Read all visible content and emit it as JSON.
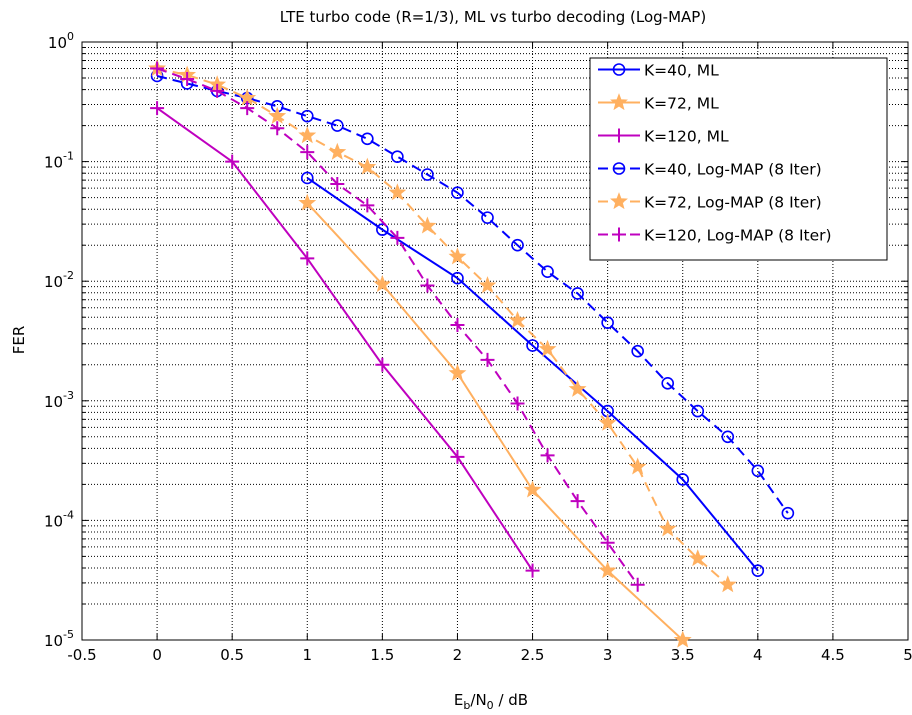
{
  "chart_data": {
    "type": "line",
    "title": "LTE turbo code (R=1/3), ML vs turbo decoding (Log-MAP)",
    "xlabel_main": "E",
    "xlabel_sub1": "b",
    "xlabel_mid": "/N",
    "xlabel_sub2": "0",
    "xlabel_tail": " / dB",
    "ylabel": "FER",
    "xlim": [
      -0.5,
      5
    ],
    "ylim": [
      1e-05,
      1
    ],
    "yscale": "log",
    "grid": true,
    "legend_position": "top-right",
    "x_ticks": [
      "-0.5",
      "0",
      "0.5",
      "1",
      "1.5",
      "2",
      "2.5",
      "3",
      "3.5",
      "4",
      "4.5",
      "5"
    ],
    "y_ticks": [
      {
        "base": "10",
        "exp": "0"
      },
      {
        "base": "10",
        "exp": "-1"
      },
      {
        "base": "10",
        "exp": "-2"
      },
      {
        "base": "10",
        "exp": "-3"
      },
      {
        "base": "10",
        "exp": "-4"
      },
      {
        "base": "10",
        "exp": "-5"
      }
    ],
    "series": [
      {
        "name": "K=40,   ML",
        "color": "#0000ff",
        "marker": "circle",
        "line": "solid",
        "x": [
          1,
          1.5,
          2,
          2.5,
          3,
          3.5,
          4
        ],
        "y": [
          0.073,
          0.027,
          0.0106,
          0.0029,
          0.00082,
          0.00022,
          3.8e-05
        ]
      },
      {
        "name": "K=72,   ML",
        "color": "#ffb060",
        "marker": "star",
        "line": "solid",
        "x": [
          1,
          1.5,
          2,
          2.5,
          3,
          3.5
        ],
        "y": [
          0.045,
          0.0094,
          0.0017,
          0.00018,
          3.8e-05,
          1e-05
        ]
      },
      {
        "name": "K=120, ML",
        "color": "#bf00bf",
        "marker": "plus",
        "line": "solid",
        "x": [
          0,
          0.5,
          1,
          1.5,
          2,
          2.5
        ],
        "y": [
          0.28,
          0.1,
          0.0155,
          0.002,
          0.00034,
          3.8e-05
        ]
      },
      {
        "name": "K=40,   Log-MAP (8 Iter)",
        "color": "#0000ff",
        "marker": "circle",
        "line": "dashed",
        "x": [
          0,
          0.2,
          0.4,
          0.6,
          0.8,
          1,
          1.2,
          1.4,
          1.6,
          1.8,
          2,
          2.2,
          2.4,
          2.6,
          2.8,
          3,
          3.2,
          3.4,
          3.6,
          3.8,
          4,
          4.2
        ],
        "y": [
          0.52,
          0.45,
          0.39,
          0.34,
          0.29,
          0.24,
          0.2,
          0.155,
          0.11,
          0.078,
          0.055,
          0.034,
          0.02,
          0.012,
          0.0079,
          0.0045,
          0.0026,
          0.0014,
          0.00082,
          0.0005,
          0.00026,
          0.000115
        ]
      },
      {
        "name": "K=72,   Log-MAP (8 Iter)",
        "color": "#ffb060",
        "marker": "star",
        "line": "dashed",
        "x": [
          0,
          0.2,
          0.4,
          0.6,
          0.8,
          1,
          1.2,
          1.4,
          1.6,
          1.8,
          2,
          2.2,
          2.4,
          2.6,
          2.8,
          3,
          3.2,
          3.4,
          3.6,
          3.8
        ],
        "y": [
          0.6,
          0.53,
          0.44,
          0.34,
          0.24,
          0.165,
          0.12,
          0.09,
          0.055,
          0.029,
          0.016,
          0.0092,
          0.0047,
          0.0027,
          0.00125,
          0.00065,
          0.00028,
          8.5e-05,
          4.8e-05,
          2.9e-05
        ]
      },
      {
        "name": "K=120, Log-MAP (8 Iter)",
        "color": "#bf00bf",
        "marker": "plus",
        "line": "dashed",
        "x": [
          0,
          0.2,
          0.4,
          0.6,
          0.8,
          1,
          1.2,
          1.4,
          1.6,
          1.8,
          2,
          2.2,
          2.4,
          2.6,
          2.8,
          3,
          3.2
        ],
        "y": [
          0.6,
          0.49,
          0.39,
          0.28,
          0.19,
          0.12,
          0.065,
          0.043,
          0.023,
          0.0092,
          0.0043,
          0.0022,
          0.00095,
          0.00035,
          0.000145,
          6.5e-05,
          2.9e-05
        ]
      }
    ]
  }
}
